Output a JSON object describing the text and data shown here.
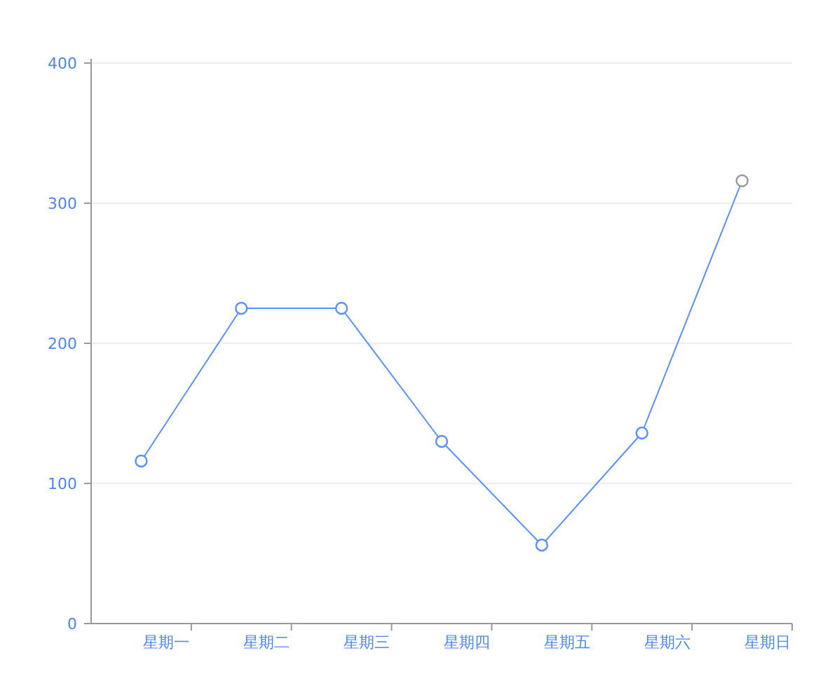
{
  "chart_data": {
    "type": "line",
    "categories": [
      "星期一",
      "星期二",
      "星期三",
      "星期四",
      "星期五",
      "星期六",
      "星期日"
    ],
    "series": [
      {
        "color": "#5b8ff9",
        "values": [
          116,
          225,
          225,
          130,
          56,
          136,
          316
        ],
        "colors": [
          "#5b8ff9",
          "#5b8ff9",
          "#5b8ff9",
          "#5b8ff9",
          "#5b8ff9",
          "#5b8ff9",
          "#999999"
        ]
      }
    ],
    "ylim": [
      0,
      400
    ],
    "yticks": [
      0,
      100,
      200,
      300,
      400
    ],
    "grid": "y",
    "marker": "circle",
    "line_style": "solid"
  }
}
